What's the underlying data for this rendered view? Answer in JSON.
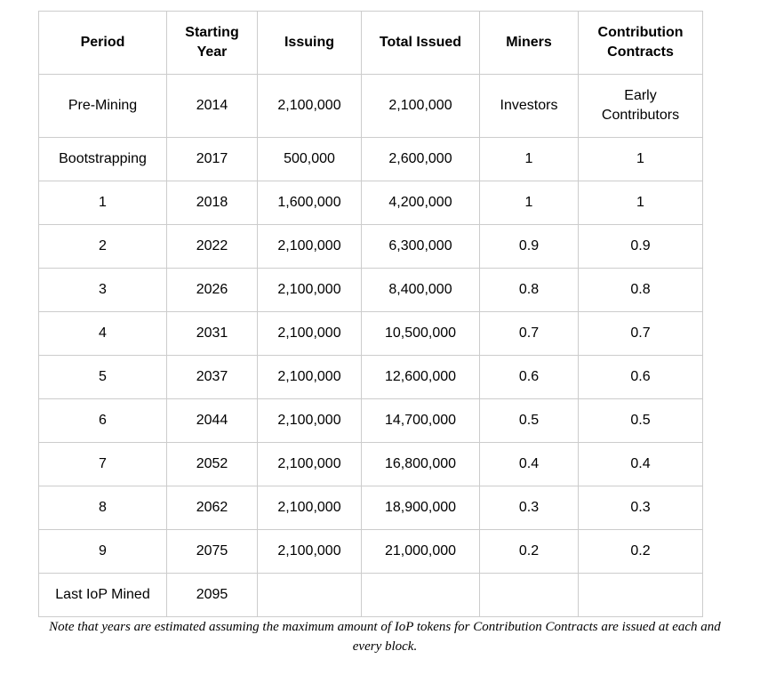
{
  "table": {
    "headers": [
      [
        "Period"
      ],
      [
        "Starting",
        "Year"
      ],
      [
        "Issuing"
      ],
      [
        "Total Issued"
      ],
      [
        "Miners"
      ],
      [
        "Contribution",
        "Contracts"
      ]
    ],
    "first_row": {
      "period": "Pre-Mining",
      "year": "2014",
      "issuing": "2,100,000",
      "total": "2,100,000",
      "miners": "Investors",
      "contracts": [
        "Early",
        "Contributors"
      ]
    },
    "rows": [
      [
        "Bootstrapping",
        "2017",
        "500,000",
        "2,600,000",
        "1",
        "1"
      ],
      [
        "1",
        "2018",
        "1,600,000",
        "4,200,000",
        "1",
        "1"
      ],
      [
        "2",
        "2022",
        "2,100,000",
        "6,300,000",
        "0.9",
        "0.9"
      ],
      [
        "3",
        "2026",
        "2,100,000",
        "8,400,000",
        "0.8",
        "0.8"
      ],
      [
        "4",
        "2031",
        "2,100,000",
        "10,500,000",
        "0.7",
        "0.7"
      ],
      [
        "5",
        "2037",
        "2,100,000",
        "12,600,000",
        "0.6",
        "0.6"
      ],
      [
        "6",
        "2044",
        "2,100,000",
        "14,700,000",
        "0.5",
        "0.5"
      ],
      [
        "7",
        "2052",
        "2,100,000",
        "16,800,000",
        "0.4",
        "0.4"
      ],
      [
        "8",
        "2062",
        "2,100,000",
        "18,900,000",
        "0.3",
        "0.3"
      ],
      [
        "9",
        "2075",
        "2,100,000",
        "21,000,000",
        "0.2",
        "0.2"
      ],
      [
        "Last IoP Mined",
        "2095",
        "",
        "",
        "",
        ""
      ]
    ]
  },
  "note": "Note that years are estimated assuming the maximum amount of IoP tokens for Contribution Contracts are issued at each and every block."
}
